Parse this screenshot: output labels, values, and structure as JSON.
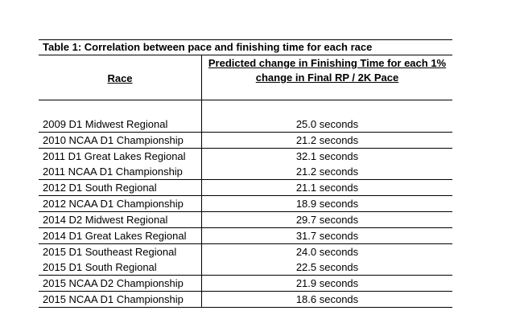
{
  "table": {
    "caption": "Table 1: Correlation between pace and finishing time for each race",
    "header_race": "Race",
    "header_time_line1": "Predicted change in Finishing Time for each 1%",
    "header_time_line2": "change in Final RP / 2K Pace",
    "rows": [
      {
        "race": "2009 D1 Midwest Regional",
        "time": "25.0 seconds"
      },
      {
        "race": "2010 NCAA D1 Championship",
        "time": "21.2 seconds"
      },
      {
        "race": "2011 D1 Great Lakes Regional",
        "time": "32.1 seconds"
      },
      {
        "race": "2011 NCAA D1 Championship",
        "time": "21.2 seconds"
      },
      {
        "race": "2012 D1 South Regional",
        "time": "21.1 seconds"
      },
      {
        "race": "2012 NCAA D1 Championship",
        "time": "18.9 seconds"
      },
      {
        "race": "2014 D2 Midwest Regional",
        "time": "29.7 seconds"
      },
      {
        "race": "2014 D1 Great Lakes Regional",
        "time": "31.7 seconds"
      },
      {
        "race": "2015 D1 Southeast Regional",
        "time": "24.0 seconds"
      },
      {
        "race": "2015 D1 South Regional",
        "time": "22.5 seconds"
      },
      {
        "race": "2015 NCAA D2 Championship",
        "time": "21.9 seconds"
      },
      {
        "race": "2015 NCAA D1 Championship",
        "time": "18.6 seconds"
      }
    ]
  }
}
